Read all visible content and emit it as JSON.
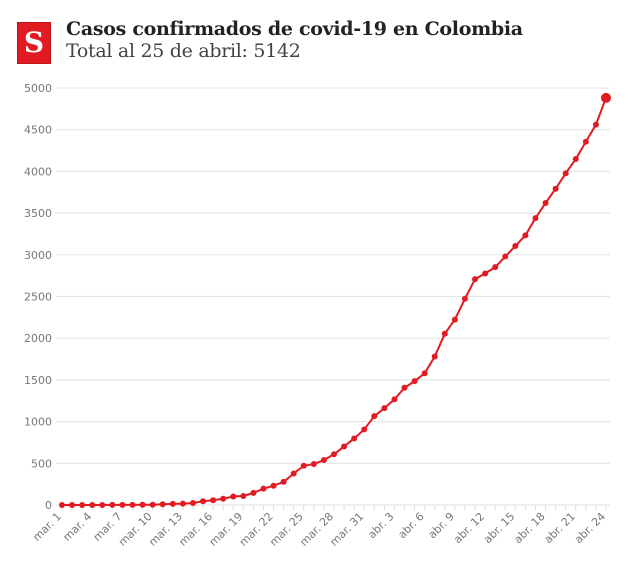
{
  "header": {
    "logo_letter": "S",
    "title": "Casos confirmados de covid-19 en Colombia",
    "subtitle": "Total al 25 de abril: 5142"
  },
  "colors": {
    "line": "#e21b23",
    "grid": "#e6e6e6",
    "brand": "#e21b23"
  },
  "chart_data": {
    "type": "line",
    "title": "Casos confirmados de covid-19 en Colombia",
    "subtitle": "Total al 25 de abril: 5142",
    "xlabel": "",
    "ylabel": "",
    "ylim": [
      0,
      5000
    ],
    "yticks": [
      0,
      500,
      1000,
      1500,
      2000,
      2500,
      3000,
      3500,
      4000,
      4500,
      5000
    ],
    "grid": true,
    "x": [
      "mar. 1",
      "mar. 2",
      "mar. 3",
      "mar. 4",
      "mar. 5",
      "mar. 6",
      "mar. 7",
      "mar. 8",
      "mar. 9",
      "mar. 10",
      "mar. 11",
      "mar. 12",
      "mar. 13",
      "mar. 14",
      "mar. 15",
      "mar. 16",
      "mar. 17",
      "mar. 18",
      "mar. 19",
      "mar. 20",
      "mar. 21",
      "mar. 22",
      "mar. 23",
      "mar. 24",
      "mar. 25",
      "mar. 26",
      "mar. 27",
      "mar. 28",
      "mar. 29",
      "mar. 30",
      "mar. 31",
      "abr. 1",
      "abr. 2",
      "abr. 3",
      "abr. 4",
      "abr. 5",
      "abr. 6",
      "abr. 7",
      "abr. 8",
      "abr. 9",
      "abr. 10",
      "abr. 11",
      "abr. 12",
      "abr. 13",
      "abr. 14",
      "abr. 15",
      "abr. 16",
      "abr. 17",
      "abr. 18",
      "abr. 19",
      "abr. 20",
      "abr. 21",
      "abr. 22",
      "abr. 23",
      "abr. 24"
    ],
    "xtick_labels": [
      "mar. 1",
      "mar. 4",
      "mar. 7",
      "mar. 10",
      "mar. 13",
      "mar. 16",
      "mar. 19",
      "mar. 22",
      "mar. 25",
      "mar. 28",
      "mar. 31",
      "abr. 3",
      "abr. 6",
      "abr. 9",
      "abr. 12",
      "abr. 15",
      "abr. 18",
      "abr. 21",
      "abr. 24"
    ],
    "series": [
      {
        "values": [
          0,
          0,
          0,
          0,
          0,
          1,
          1,
          1,
          3,
          3,
          9,
          13,
          16,
          24,
          45,
          57,
          75,
          102,
          108,
          145,
          196,
          231,
          277,
          378,
          470,
          491,
          539,
          608,
          702,
          798,
          906,
          1065,
          1161,
          1267,
          1406,
          1485,
          1579,
          1780,
          2054,
          2223,
          2473,
          2709,
          2776,
          2852,
          2979,
          3105,
          3233,
          3439,
          3621,
          3792,
          3977,
          4149,
          4356,
          4561,
          4881
        ]
      }
    ]
  }
}
